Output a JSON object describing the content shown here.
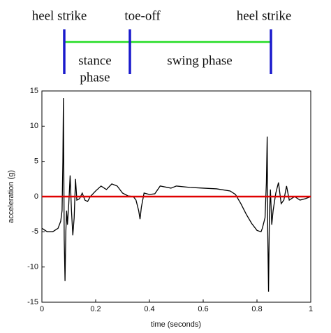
{
  "chart_data": {
    "type": "line",
    "annotations": [
      "heel strike",
      "toe-off",
      "heel strike",
      "stance",
      "phase",
      "swing phase"
    ],
    "xlabel": "time (seconds)",
    "ylabel": "acceleration (g)",
    "xlim": [
      0,
      1
    ],
    "ylim": [
      -15,
      15
    ],
    "xticks": [
      0,
      0.2,
      0.4,
      0.6,
      0.8,
      1
    ],
    "yticks": [
      -15,
      -10,
      -5,
      0,
      5,
      10,
      15
    ],
    "reference_line": {
      "value": 0,
      "color": "#e00000"
    },
    "series": [
      {
        "color": "#000000",
        "x": [
          0,
          0.02,
          0.04,
          0.06,
          0.07,
          0.075,
          0.078,
          0.08,
          0.083,
          0.086,
          0.089,
          0.092,
          0.095,
          0.1,
          0.105,
          0.11,
          0.115,
          0.12,
          0.125,
          0.13,
          0.14,
          0.15,
          0.16,
          0.17,
          0.18,
          0.2,
          0.22,
          0.24,
          0.26,
          0.28,
          0.3,
          0.32,
          0.34,
          0.35,
          0.36,
          0.365,
          0.37,
          0.38,
          0.4,
          0.42,
          0.44,
          0.48,
          0.5,
          0.55,
          0.6,
          0.65,
          0.7,
          0.72,
          0.74,
          0.76,
          0.78,
          0.8,
          0.815,
          0.82,
          0.83,
          0.835,
          0.838,
          0.84,
          0.843,
          0.846,
          0.85,
          0.855,
          0.86,
          0.87,
          0.88,
          0.89,
          0.9,
          0.91,
          0.92,
          0.94,
          0.96,
          0.98,
          1
        ],
        "values": [
          -4.5,
          -5,
          -5,
          -4.5,
          -3.5,
          -2,
          5,
          14,
          -6,
          -12,
          -5,
          -2,
          -4,
          -1,
          3,
          -2,
          -5.5,
          -3,
          2.5,
          -0.5,
          -0.3,
          0.5,
          -0.5,
          -0.7,
          0,
          0.8,
          1.5,
          1,
          1.8,
          1.5,
          0.5,
          0.1,
          0,
          -0.5,
          -2,
          -3.2,
          -1.5,
          0.5,
          0.3,
          0.4,
          1.5,
          1.2,
          1.5,
          1.3,
          1.2,
          1.1,
          0.8,
          0.3,
          -1,
          -2.5,
          -3.8,
          -4.8,
          -5,
          -4.5,
          -3,
          2,
          8.5,
          -5,
          -13.5,
          -3,
          1,
          -4,
          -2,
          0.5,
          2,
          -1,
          -0.5,
          1.5,
          -0.5,
          0,
          -0.5,
          -0.3,
          0
        ]
      }
    ]
  }
}
